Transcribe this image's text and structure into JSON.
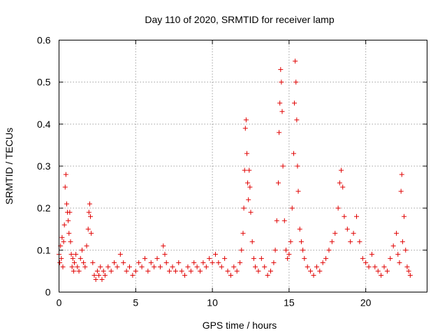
{
  "chart_data": {
    "type": "scatter",
    "title": "Day 110 of 2020, SRMTID for receiver lamp",
    "xlabel": "GPS time / hours",
    "ylabel": "SRMTID / TECUs",
    "xlim": [
      0,
      24
    ],
    "ylim": [
      0,
      0.6
    ],
    "xticks": [
      0,
      5,
      10,
      15,
      20
    ],
    "yticks": [
      0,
      0.1,
      0.2,
      0.3,
      0.4,
      0.5,
      0.6
    ],
    "xtick_labels": [
      "0",
      "5",
      "10",
      "15",
      "20"
    ],
    "ytick_labels": [
      "0",
      "0.1",
      "0.2",
      "0.3",
      "0.4",
      "0.5",
      "0.6"
    ],
    "grid": true,
    "legend": null,
    "marker": "plus",
    "color": "#e00000",
    "series": [
      {
        "name": "SRMTID",
        "points": [
          [
            0.0,
            0.09
          ],
          [
            0.05,
            0.07
          ],
          [
            0.1,
            0.11
          ],
          [
            0.15,
            0.08
          ],
          [
            0.2,
            0.13
          ],
          [
            0.25,
            0.06
          ],
          [
            0.3,
            0.12
          ],
          [
            0.35,
            0.16
          ],
          [
            0.4,
            0.25
          ],
          [
            0.45,
            0.28
          ],
          [
            0.5,
            0.21
          ],
          [
            0.55,
            0.19
          ],
          [
            0.6,
            0.17
          ],
          [
            0.65,
            0.14
          ],
          [
            0.7,
            0.19
          ],
          [
            0.75,
            0.12
          ],
          [
            0.8,
            0.09
          ],
          [
            0.85,
            0.06
          ],
          [
            0.9,
            0.08
          ],
          [
            0.95,
            0.05
          ],
          [
            1.0,
            0.07
          ],
          [
            1.1,
            0.09
          ],
          [
            1.2,
            0.06
          ],
          [
            1.3,
            0.05
          ],
          [
            1.4,
            0.08
          ],
          [
            1.5,
            0.1
          ],
          [
            1.6,
            0.07
          ],
          [
            1.7,
            0.06
          ],
          [
            1.8,
            0.11
          ],
          [
            1.9,
            0.15
          ],
          [
            1.95,
            0.19
          ],
          [
            2.0,
            0.21
          ],
          [
            2.05,
            0.18
          ],
          [
            2.1,
            0.14
          ],
          [
            2.2,
            0.07
          ],
          [
            2.3,
            0.04
          ],
          [
            2.4,
            0.03
          ],
          [
            2.5,
            0.05
          ],
          [
            2.6,
            0.04
          ],
          [
            2.7,
            0.06
          ],
          [
            2.8,
            0.03
          ],
          [
            2.9,
            0.05
          ],
          [
            3.0,
            0.04
          ],
          [
            3.2,
            0.06
          ],
          [
            3.4,
            0.05
          ],
          [
            3.6,
            0.07
          ],
          [
            3.8,
            0.06
          ],
          [
            4.0,
            0.09
          ],
          [
            4.2,
            0.07
          ],
          [
            4.4,
            0.05
          ],
          [
            4.6,
            0.06
          ],
          [
            4.8,
            0.04
          ],
          [
            5.0,
            0.05
          ],
          [
            5.2,
            0.07
          ],
          [
            5.4,
            0.06
          ],
          [
            5.6,
            0.08
          ],
          [
            5.8,
            0.05
          ],
          [
            6.0,
            0.07
          ],
          [
            6.2,
            0.06
          ],
          [
            6.4,
            0.08
          ],
          [
            6.6,
            0.06
          ],
          [
            6.8,
            0.11
          ],
          [
            6.9,
            0.09
          ],
          [
            7.0,
            0.07
          ],
          [
            7.2,
            0.05
          ],
          [
            7.4,
            0.06
          ],
          [
            7.6,
            0.05
          ],
          [
            7.8,
            0.07
          ],
          [
            8.0,
            0.05
          ],
          [
            8.2,
            0.04
          ],
          [
            8.4,
            0.06
          ],
          [
            8.6,
            0.05
          ],
          [
            8.8,
            0.07
          ],
          [
            9.0,
            0.06
          ],
          [
            9.2,
            0.05
          ],
          [
            9.4,
            0.07
          ],
          [
            9.6,
            0.06
          ],
          [
            9.8,
            0.08
          ],
          [
            10.0,
            0.07
          ],
          [
            10.2,
            0.09
          ],
          [
            10.4,
            0.07
          ],
          [
            10.6,
            0.06
          ],
          [
            10.8,
            0.08
          ],
          [
            11.0,
            0.05
          ],
          [
            11.2,
            0.04
          ],
          [
            11.4,
            0.06
          ],
          [
            11.6,
            0.05
          ],
          [
            11.8,
            0.07
          ],
          [
            11.9,
            0.1
          ],
          [
            12.0,
            0.14
          ],
          [
            12.05,
            0.2
          ],
          [
            12.1,
            0.29
          ],
          [
            12.15,
            0.39
          ],
          [
            12.2,
            0.41
          ],
          [
            12.25,
            0.33
          ],
          [
            12.3,
            0.26
          ],
          [
            12.35,
            0.22
          ],
          [
            12.4,
            0.29
          ],
          [
            12.45,
            0.25
          ],
          [
            12.5,
            0.19
          ],
          [
            12.6,
            0.12
          ],
          [
            12.7,
            0.08
          ],
          [
            12.8,
            0.06
          ],
          [
            13.0,
            0.05
          ],
          [
            13.2,
            0.08
          ],
          [
            13.4,
            0.06
          ],
          [
            13.6,
            0.04
          ],
          [
            13.8,
            0.05
          ],
          [
            14.0,
            0.07
          ],
          [
            14.1,
            0.1
          ],
          [
            14.2,
            0.17
          ],
          [
            14.3,
            0.26
          ],
          [
            14.35,
            0.38
          ],
          [
            14.4,
            0.45
          ],
          [
            14.45,
            0.53
          ],
          [
            14.5,
            0.5
          ],
          [
            14.55,
            0.43
          ],
          [
            14.6,
            0.3
          ],
          [
            14.7,
            0.17
          ],
          [
            14.8,
            0.1
          ],
          [
            14.9,
            0.08
          ],
          [
            15.0,
            0.09
          ],
          [
            15.1,
            0.12
          ],
          [
            15.2,
            0.2
          ],
          [
            15.3,
            0.33
          ],
          [
            15.35,
            0.45
          ],
          [
            15.4,
            0.55
          ],
          [
            15.45,
            0.5
          ],
          [
            15.5,
            0.41
          ],
          [
            15.55,
            0.3
          ],
          [
            15.6,
            0.24
          ],
          [
            15.7,
            0.15
          ],
          [
            15.8,
            0.12
          ],
          [
            15.9,
            0.1
          ],
          [
            16.0,
            0.08
          ],
          [
            16.2,
            0.06
          ],
          [
            16.4,
            0.05
          ],
          [
            16.6,
            0.04
          ],
          [
            16.8,
            0.06
          ],
          [
            17.0,
            0.05
          ],
          [
            17.2,
            0.07
          ],
          [
            17.4,
            0.08
          ],
          [
            17.6,
            0.1
          ],
          [
            17.8,
            0.12
          ],
          [
            18.0,
            0.14
          ],
          [
            18.2,
            0.2
          ],
          [
            18.3,
            0.26
          ],
          [
            18.4,
            0.29
          ],
          [
            18.5,
            0.25
          ],
          [
            18.6,
            0.18
          ],
          [
            18.8,
            0.15
          ],
          [
            19.0,
            0.12
          ],
          [
            19.2,
            0.14
          ],
          [
            19.4,
            0.18
          ],
          [
            19.6,
            0.12
          ],
          [
            19.8,
            0.08
          ],
          [
            20.0,
            0.07
          ],
          [
            20.2,
            0.06
          ],
          [
            20.4,
            0.09
          ],
          [
            20.6,
            0.06
          ],
          [
            20.8,
            0.05
          ],
          [
            21.0,
            0.04
          ],
          [
            21.2,
            0.06
          ],
          [
            21.4,
            0.05
          ],
          [
            21.6,
            0.08
          ],
          [
            21.8,
            0.11
          ],
          [
            22.0,
            0.14
          ],
          [
            22.1,
            0.09
          ],
          [
            22.2,
            0.07
          ],
          [
            22.3,
            0.24
          ],
          [
            22.35,
            0.28
          ],
          [
            22.4,
            0.12
          ],
          [
            22.5,
            0.18
          ],
          [
            22.6,
            0.1
          ],
          [
            22.7,
            0.06
          ],
          [
            22.8,
            0.05
          ],
          [
            22.9,
            0.04
          ]
        ]
      }
    ]
  }
}
